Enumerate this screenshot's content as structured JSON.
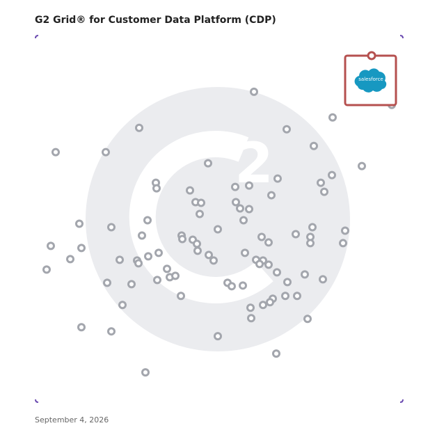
{
  "chart_data": {
    "type": "scatter",
    "title": "G2 Grid® for Customer Data Platform (CDP)",
    "date": "September 4, 2026",
    "xlim": [
      0,
      528
    ],
    "ylim": [
      0,
      528
    ],
    "color": "#a3a6ad",
    "x": [
      314,
      149,
      29,
      101,
      427,
      361,
      400,
      469,
      512,
      248,
      173,
      174,
      222,
      230,
      238,
      236,
      287,
      307,
      348,
      339,
      288,
      294,
      307,
      299,
      410,
      426,
      415,
      161,
      63,
      109,
      262,
      398,
      445,
      374,
      395,
      395,
      442,
      325,
      335,
      153,
      210,
      211,
      226,
      232,
      233,
      22,
      66,
      50,
      16,
      121,
      146,
      148,
      162,
      177,
      249,
      256,
      301,
      317,
      327,
      322,
      335,
      189,
      175,
      193,
      201,
      103,
      138,
      276,
      282,
      298,
      347,
      362,
      387,
      413,
      209,
      125,
      359,
      376,
      341,
      337,
      327,
      309,
      310,
      391,
      66,
      109,
      262,
      346,
      158
    ],
    "y": [
      447,
      395,
      360,
      360,
      410,
      393,
      369,
      340,
      428,
      344,
      316,
      308,
      305,
      288,
      287,
      271,
      310,
      312,
      322,
      298,
      288,
      279,
      278,
      262,
      316,
      327,
      303,
      262,
      257,
      252,
      249,
      252,
      247,
      242,
      238,
      229,
      229,
      238,
      230,
      240,
      240,
      235,
      234,
      228,
      218,
      225,
      222,
      206,
      191,
      205,
      204,
      200,
      210,
      215,
      212,
      204,
      215,
      205,
      204,
      199,
      198,
      192,
      176,
      180,
      182,
      172,
      170,
      172,
      167,
      168,
      187,
      173,
      184,
      177,
      153,
      140,
      153,
      153,
      149,
      144,
      140,
      136,
      121,
      120,
      108,
      102,
      95,
      70,
      43
    ],
    "highlight": {
      "label": "salesforce",
      "x": 483,
      "y": 499,
      "color": "#b5504f"
    }
  }
}
